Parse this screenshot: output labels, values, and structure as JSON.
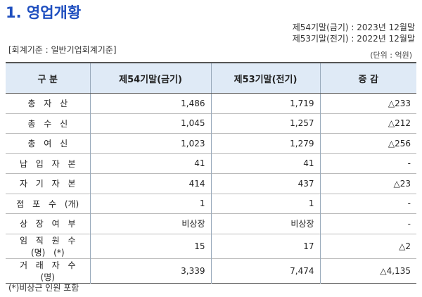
{
  "header": {
    "title": "1. 영업개황",
    "periods": [
      "제54기말(금기) : 2023년 12월말",
      "제53기말(전기) : 2022년 12월말"
    ],
    "standard": "[회계기준 : 일반기업회계기준]",
    "unit": "(단위 : 억원)"
  },
  "table": {
    "columns": [
      "구 분",
      "제54기말(금기)",
      "제53기말(전기)",
      "증 감"
    ],
    "rows": [
      [
        "총 자 산",
        "1,486",
        "1,719",
        "△233"
      ],
      [
        "총 수 신",
        "1,045",
        "1,257",
        "△212"
      ],
      [
        "총 여 신",
        "1,023",
        "1,279",
        "△256"
      ],
      [
        "납 입 자 본",
        "41",
        "41",
        "-"
      ],
      [
        "자 기 자 본",
        "414",
        "437",
        "△23"
      ],
      [
        "점 포 수 (개)",
        "1",
        "1",
        "-"
      ],
      [
        "상 장 여 부",
        "비상장",
        "비상장",
        "-"
      ],
      [
        "임 직 원 수 (명) (*)",
        "15",
        "17",
        "△2"
      ],
      [
        "거 래 자 수 (명)",
        "3,339",
        "7,474",
        "△4,135"
      ]
    ]
  },
  "footnote": "(*)비상근 인원 포함"
}
